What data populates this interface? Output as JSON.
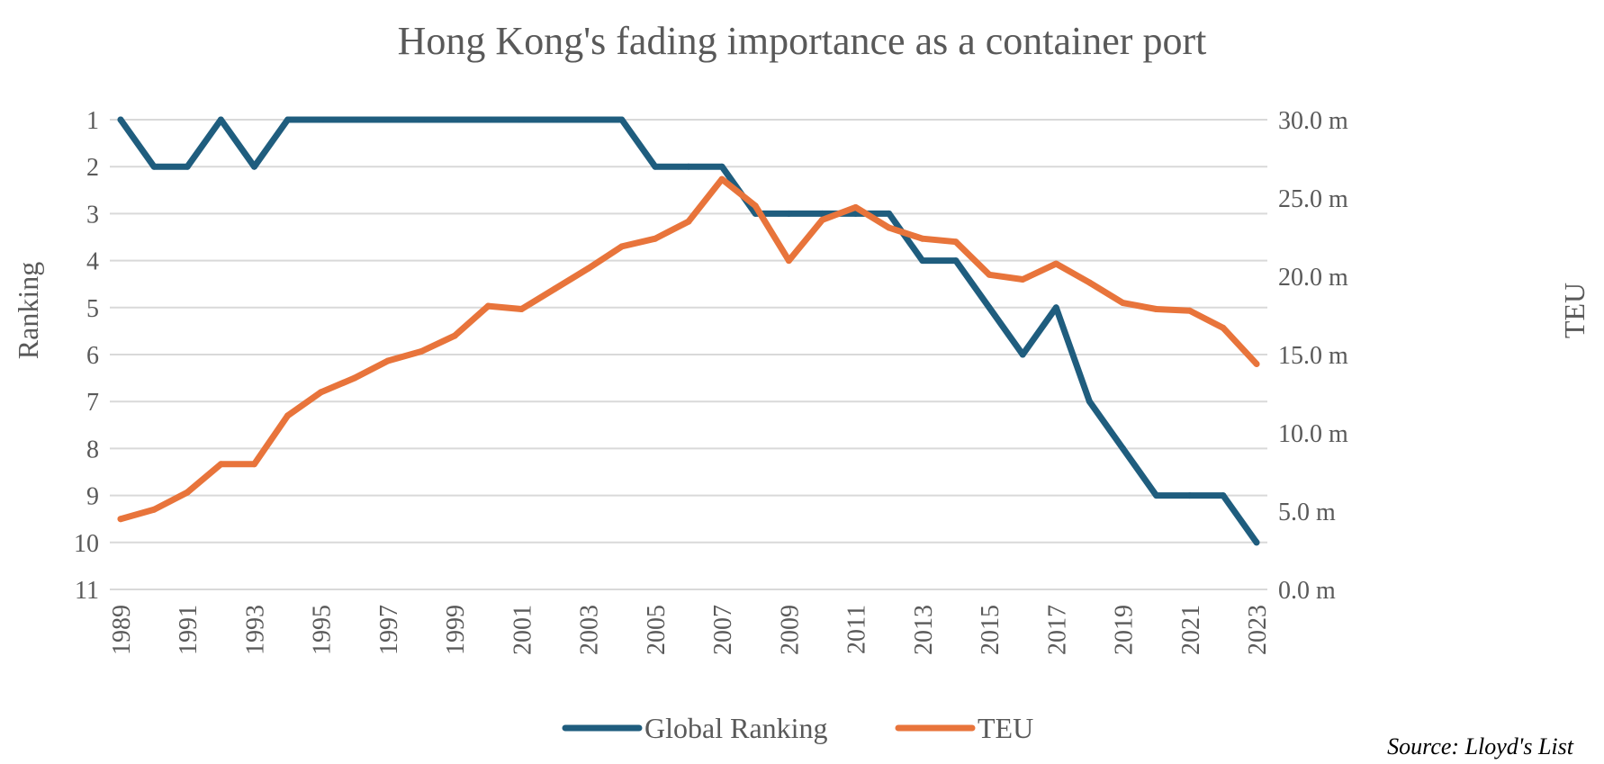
{
  "chart_data": {
    "type": "line",
    "title": "Hong Kong's fading importance as a container port",
    "x": [
      1989,
      1990,
      1991,
      1992,
      1993,
      1994,
      1995,
      1996,
      1997,
      1998,
      1999,
      2000,
      2001,
      2002,
      2003,
      2004,
      2005,
      2006,
      2007,
      2008,
      2009,
      2010,
      2011,
      2012,
      2013,
      2014,
      2015,
      2016,
      2017,
      2018,
      2019,
      2020,
      2021,
      2022,
      2023
    ],
    "x_tick_labels": [
      "1989",
      "1991",
      "1993",
      "1995",
      "1997",
      "1999",
      "2001",
      "2003",
      "2005",
      "2007",
      "2009",
      "2011",
      "2013",
      "2015",
      "2017",
      "2019",
      "2021",
      "2023"
    ],
    "y_left": {
      "label": "Ranking",
      "ylim": [
        1,
        11
      ],
      "inverted": true,
      "tick_labels": [
        "1",
        "2",
        "3",
        "4",
        "5",
        "6",
        "7",
        "8",
        "9",
        "10",
        "11"
      ]
    },
    "y_right": {
      "label": "TEU",
      "ylim": [
        0,
        30
      ],
      "unit": "million TEU",
      "tick_labels": [
        "30.0 m",
        "25.0 m",
        "20.0 m",
        "15.0 m",
        "10.0 m",
        "5.0 m",
        "0.0 m"
      ]
    },
    "series": [
      {
        "name": "Global Ranking",
        "axis": "left",
        "color": "#1f5d7e",
        "values": [
          1,
          2,
          2,
          1,
          2,
          1,
          1,
          1,
          1,
          1,
          1,
          1,
          1,
          1,
          1,
          1,
          2,
          2,
          2,
          3,
          3,
          3,
          3,
          3,
          4,
          4,
          5,
          6,
          5,
          7,
          8,
          9,
          9,
          9,
          10
        ]
      },
      {
        "name": "TEU",
        "axis": "right",
        "color": "#e8743b",
        "values": [
          4.5,
          5.1,
          6.2,
          8.0,
          8.0,
          11.1,
          12.6,
          13.5,
          14.6,
          15.2,
          16.2,
          18.1,
          17.9,
          19.2,
          20.5,
          21.9,
          22.4,
          23.5,
          26.2,
          24.5,
          21.0,
          23.6,
          24.4,
          23.1,
          22.4,
          22.2,
          20.1,
          19.8,
          20.8,
          19.6,
          18.3,
          17.9,
          17.8,
          16.7,
          14.4
        ]
      }
    ],
    "grid": true,
    "legend_position": "bottom",
    "source": "Source: Lloyd's List"
  }
}
